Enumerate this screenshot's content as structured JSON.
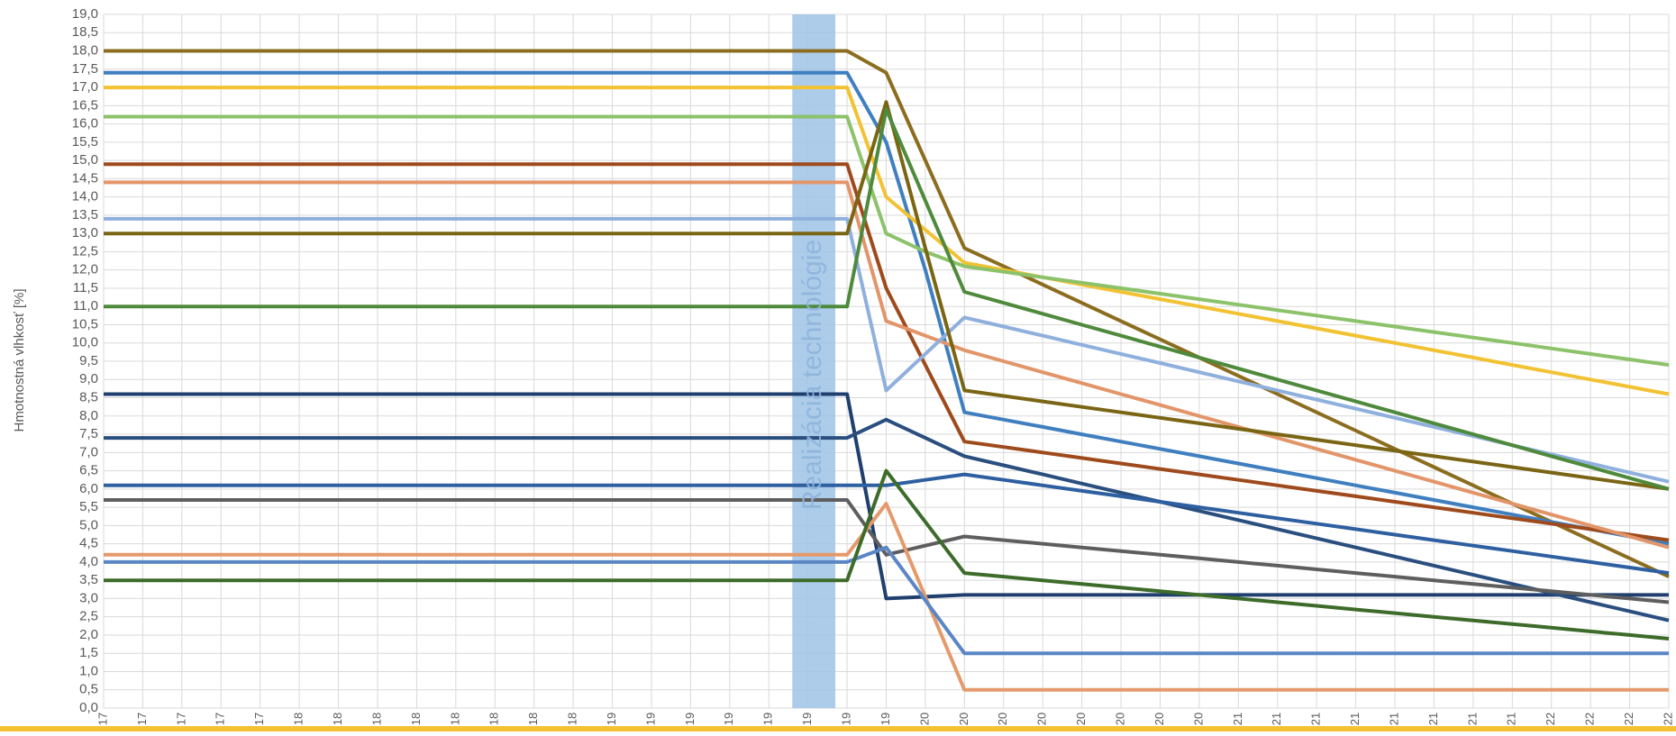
{
  "chart_data": {
    "type": "line",
    "y_label": "Hmotnostná vlhkosť [%]",
    "annotation": "Realizácia technológie",
    "grid": true,
    "ylim": [
      0,
      19
    ],
    "yticks": [
      {
        "value": 0,
        "label": "0,0"
      },
      {
        "value": 0.5,
        "label": "0,5"
      },
      {
        "value": 1,
        "label": "1,0"
      },
      {
        "value": 1.5,
        "label": "1,5"
      },
      {
        "value": 2,
        "label": "2,0"
      },
      {
        "value": 2.5,
        "label": "2,5"
      },
      {
        "value": 3,
        "label": "3,0"
      },
      {
        "value": 3.5,
        "label": "3,5"
      },
      {
        "value": 4,
        "label": "4,0"
      },
      {
        "value": 4.5,
        "label": "4,5"
      },
      {
        "value": 5,
        "label": "5,0"
      },
      {
        "value": 5.5,
        "label": "5,5"
      },
      {
        "value": 6,
        "label": "6,0"
      },
      {
        "value": 6.5,
        "label": "6,5"
      },
      {
        "value": 7,
        "label": "7,0"
      },
      {
        "value": 7.5,
        "label": "7,5"
      },
      {
        "value": 8,
        "label": "8,0"
      },
      {
        "value": 8.5,
        "label": "8,5"
      },
      {
        "value": 9,
        "label": "9,0"
      },
      {
        "value": 9.5,
        "label": "9,5"
      },
      {
        "value": 10,
        "label": "10,0"
      },
      {
        "value": 10.5,
        "label": "10,5"
      },
      {
        "value": 11,
        "label": "11,0"
      },
      {
        "value": 11.5,
        "label": "11,5"
      },
      {
        "value": 12,
        "label": "12,0"
      },
      {
        "value": 12.5,
        "label": "12,5"
      },
      {
        "value": 13,
        "label": "13,0"
      },
      {
        "value": 13.5,
        "label": "13,5"
      },
      {
        "value": 14,
        "label": "14,0"
      },
      {
        "value": 14.5,
        "label": "14,5"
      },
      {
        "value": 15,
        "label": "15,0"
      },
      {
        "value": 15.5,
        "label": "15,5"
      },
      {
        "value": 16,
        "label": "16,0"
      },
      {
        "value": 16.5,
        "label": "16,5"
      },
      {
        "value": 17,
        "label": "17,0"
      },
      {
        "value": 17.5,
        "label": "17,5"
      },
      {
        "value": 18,
        "label": "18,0"
      },
      {
        "value": 18.5,
        "label": "18,5"
      },
      {
        "value": 19,
        "label": "19,0"
      }
    ],
    "categories": [
      "17",
      "17",
      "17",
      "17",
      "17",
      "18",
      "18",
      "18",
      "18",
      "18",
      "18",
      "18",
      "18",
      "19",
      "19",
      "19",
      "19",
      "19",
      "19",
      "19",
      "19",
      "20",
      "20",
      "20",
      "20",
      "20",
      "20",
      "20",
      "20",
      "21",
      "21",
      "21",
      "21",
      "21",
      "21",
      "21",
      "21",
      "22",
      "22",
      "22",
      "22"
    ],
    "series": [
      {
        "color": "#8c6d1f",
        "values": [
          18,
          18,
          18,
          18,
          18,
          18,
          18,
          18,
          18,
          18,
          18,
          18,
          18,
          18,
          18,
          18,
          18,
          18,
          18,
          18,
          17.4,
          15,
          12.6,
          12.1,
          11.6,
          11.1,
          10.6,
          10.1,
          9.6,
          9.1,
          8.6,
          8.1,
          7.6,
          7.1,
          6.6,
          6.1,
          5.6,
          5.1,
          4.6,
          4.1,
          3.6
        ]
      },
      {
        "color": "#3f7fc0",
        "values": [
          17.4,
          17.4,
          17.4,
          17.4,
          17.4,
          17.4,
          17.4,
          17.4,
          17.4,
          17.4,
          17.4,
          17.4,
          17.4,
          17.4,
          17.4,
          17.4,
          17.4,
          17.4,
          17.4,
          17.4,
          15.5,
          12,
          8.1,
          7.9,
          7.7,
          7.5,
          7.3,
          7.1,
          6.9,
          6.7,
          6.5,
          6.3,
          6.1,
          5.9,
          5.7,
          5.5,
          5.3,
          5.1,
          4.9,
          4.7,
          4.5
        ]
      },
      {
        "color": "#f2c233",
        "values": [
          17,
          17,
          17,
          17,
          17,
          17,
          17,
          17,
          17,
          17,
          17,
          17,
          17,
          17,
          17,
          17,
          17,
          17,
          17,
          17,
          14,
          13.1,
          12.2,
          12,
          11.8,
          11.6,
          11.4,
          11.2,
          11,
          10.8,
          10.6,
          10.4,
          10.2,
          10,
          9.8,
          9.6,
          9.4,
          9.2,
          9,
          8.8,
          8.6
        ]
      },
      {
        "color": "#8cc26a",
        "values": [
          16.2,
          16.2,
          16.2,
          16.2,
          16.2,
          16.2,
          16.2,
          16.2,
          16.2,
          16.2,
          16.2,
          16.2,
          16.2,
          16.2,
          16.2,
          16.2,
          16.2,
          16.2,
          16.2,
          16.2,
          13,
          12.5,
          12.1,
          11.95,
          11.8,
          11.65,
          11.5,
          11.35,
          11.2,
          11.05,
          10.9,
          10.75,
          10.6,
          10.45,
          10.3,
          10.15,
          10,
          9.85,
          9.7,
          9.55,
          9.4
        ]
      },
      {
        "color": "#9e4a1c",
        "values": [
          14.9,
          14.9,
          14.9,
          14.9,
          14.9,
          14.9,
          14.9,
          14.9,
          14.9,
          14.9,
          14.9,
          14.9,
          14.9,
          14.9,
          14.9,
          14.9,
          14.9,
          14.9,
          14.9,
          14.9,
          11.5,
          9.4,
          7.3,
          7.15,
          7,
          6.85,
          6.7,
          6.55,
          6.4,
          6.25,
          6.1,
          5.95,
          5.8,
          5.65,
          5.5,
          5.35,
          5.2,
          5.05,
          4.9,
          4.75,
          4.6
        ]
      },
      {
        "color": "#e3956a",
        "values": [
          14.4,
          14.4,
          14.4,
          14.4,
          14.4,
          14.4,
          14.4,
          14.4,
          14.4,
          14.4,
          14.4,
          14.4,
          14.4,
          14.4,
          14.4,
          14.4,
          14.4,
          14.4,
          14.4,
          14.4,
          10.6,
          10.2,
          9.8,
          9.5,
          9.2,
          8.9,
          8.6,
          8.3,
          8,
          7.7,
          7.4,
          7.1,
          6.8,
          6.5,
          6.2,
          5.9,
          5.6,
          5.3,
          5,
          4.7,
          4.4
        ]
      },
      {
        "color": "#8fb0dd",
        "values": [
          13.4,
          13.4,
          13.4,
          13.4,
          13.4,
          13.4,
          13.4,
          13.4,
          13.4,
          13.4,
          13.4,
          13.4,
          13.4,
          13.4,
          13.4,
          13.4,
          13.4,
          13.4,
          13.4,
          13.4,
          8.7,
          9.7,
          10.7,
          10.45,
          10.2,
          9.95,
          9.7,
          9.45,
          9.2,
          8.95,
          8.7,
          8.45,
          8.2,
          7.95,
          7.7,
          7.45,
          7.2,
          6.95,
          6.7,
          6.45,
          6.2
        ]
      },
      {
        "color": "#7a6514",
        "values": [
          13,
          13,
          13,
          13,
          13,
          13,
          13,
          13,
          13,
          13,
          13,
          13,
          13,
          13,
          13,
          13,
          13,
          13,
          13,
          13,
          16.6,
          12.6,
          8.7,
          8.55,
          8.4,
          8.25,
          8.1,
          7.95,
          7.8,
          7.65,
          7.5,
          7.35,
          7.2,
          7.05,
          6.9,
          6.75,
          6.6,
          6.45,
          6.3,
          6.15,
          6
        ]
      },
      {
        "color": "#4f8a3c",
        "values": [
          11,
          11,
          11,
          11,
          11,
          11,
          11,
          11,
          11,
          11,
          11,
          11,
          11,
          11,
          11,
          11,
          11,
          11,
          11,
          11,
          16.4,
          13.9,
          11.4,
          11.1,
          10.8,
          10.5,
          10.2,
          9.9,
          9.6,
          9.3,
          9,
          8.7,
          8.4,
          8.1,
          7.8,
          7.5,
          7.2,
          6.9,
          6.6,
          6.3,
          6
        ]
      },
      {
        "color": "#1f3f6e",
        "values": [
          8.6,
          8.6,
          8.6,
          8.6,
          8.6,
          8.6,
          8.6,
          8.6,
          8.6,
          8.6,
          8.6,
          8.6,
          8.6,
          8.6,
          8.6,
          8.6,
          8.6,
          8.6,
          8.6,
          8.6,
          3,
          3.05,
          3.1,
          3.1,
          3.1,
          3.1,
          3.1,
          3.1,
          3.1,
          3.1,
          3.1,
          3.1,
          3.1,
          3.1,
          3.1,
          3.1,
          3.1,
          3.1,
          3.1,
          3.1,
          3.1
        ]
      },
      {
        "color": "#2a4f7f",
        "values": [
          7.4,
          7.4,
          7.4,
          7.4,
          7.4,
          7.4,
          7.4,
          7.4,
          7.4,
          7.4,
          7.4,
          7.4,
          7.4,
          7.4,
          7.4,
          7.4,
          7.4,
          7.4,
          7.4,
          7.4,
          7.9,
          7.4,
          6.9,
          6.65,
          6.4,
          6.15,
          5.9,
          5.65,
          5.4,
          5.15,
          4.9,
          4.65,
          4.4,
          4.15,
          3.9,
          3.65,
          3.4,
          3.15,
          2.9,
          2.65,
          2.4
        ]
      },
      {
        "color": "#2e5fa0",
        "values": [
          6.1,
          6.1,
          6.1,
          6.1,
          6.1,
          6.1,
          6.1,
          6.1,
          6.1,
          6.1,
          6.1,
          6.1,
          6.1,
          6.1,
          6.1,
          6.1,
          6.1,
          6.1,
          6.1,
          6.1,
          6.1,
          6.25,
          6.4,
          6.25,
          6.1,
          5.95,
          5.8,
          5.65,
          5.5,
          5.35,
          5.2,
          5.05,
          4.9,
          4.75,
          4.6,
          4.45,
          4.3,
          4.15,
          4,
          3.85,
          3.7
        ]
      },
      {
        "color": "#5e5e5e",
        "values": [
          5.7,
          5.7,
          5.7,
          5.7,
          5.7,
          5.7,
          5.7,
          5.7,
          5.7,
          5.7,
          5.7,
          5.7,
          5.7,
          5.7,
          5.7,
          5.7,
          5.7,
          5.7,
          5.7,
          5.7,
          4.2,
          4.45,
          4.7,
          4.6,
          4.5,
          4.4,
          4.3,
          4.2,
          4.1,
          4,
          3.9,
          3.8,
          3.7,
          3.6,
          3.5,
          3.4,
          3.3,
          3.2,
          3.1,
          3,
          2.9
        ]
      },
      {
        "color": "#e59a6b",
        "values": [
          4.2,
          4.2,
          4.2,
          4.2,
          4.2,
          4.2,
          4.2,
          4.2,
          4.2,
          4.2,
          4.2,
          4.2,
          4.2,
          4.2,
          4.2,
          4.2,
          4.2,
          4.2,
          4.2,
          4.2,
          5.6,
          3.05,
          0.5,
          0.5,
          0.5,
          0.5,
          0.5,
          0.5,
          0.5,
          0.5,
          0.5,
          0.5,
          0.5,
          0.5,
          0.5,
          0.5,
          0.5,
          0.5,
          0.5,
          0.5,
          0.5
        ]
      },
      {
        "color": "#5b86c5",
        "values": [
          4,
          4,
          4,
          4,
          4,
          4,
          4,
          4,
          4,
          4,
          4,
          4,
          4,
          4,
          4,
          4,
          4,
          4,
          4,
          4,
          4.4,
          2.95,
          1.5,
          1.5,
          1.5,
          1.5,
          1.5,
          1.5,
          1.5,
          1.5,
          1.5,
          1.5,
          1.5,
          1.5,
          1.5,
          1.5,
          1.5,
          1.5,
          1.5,
          1.5,
          1.5
        ]
      },
      {
        "color": "#3d6b2a",
        "values": [
          3.5,
          3.5,
          3.5,
          3.5,
          3.5,
          3.5,
          3.5,
          3.5,
          3.5,
          3.5,
          3.5,
          3.5,
          3.5,
          3.5,
          3.5,
          3.5,
          3.5,
          3.5,
          3.5,
          3.5,
          6.5,
          5.1,
          3.7,
          3.6,
          3.5,
          3.4,
          3.3,
          3.2,
          3.1,
          3,
          2.9,
          2.8,
          2.7,
          2.6,
          2.5,
          2.4,
          2.3,
          2.2,
          2.1,
          2,
          1.9
        ]
      }
    ]
  }
}
